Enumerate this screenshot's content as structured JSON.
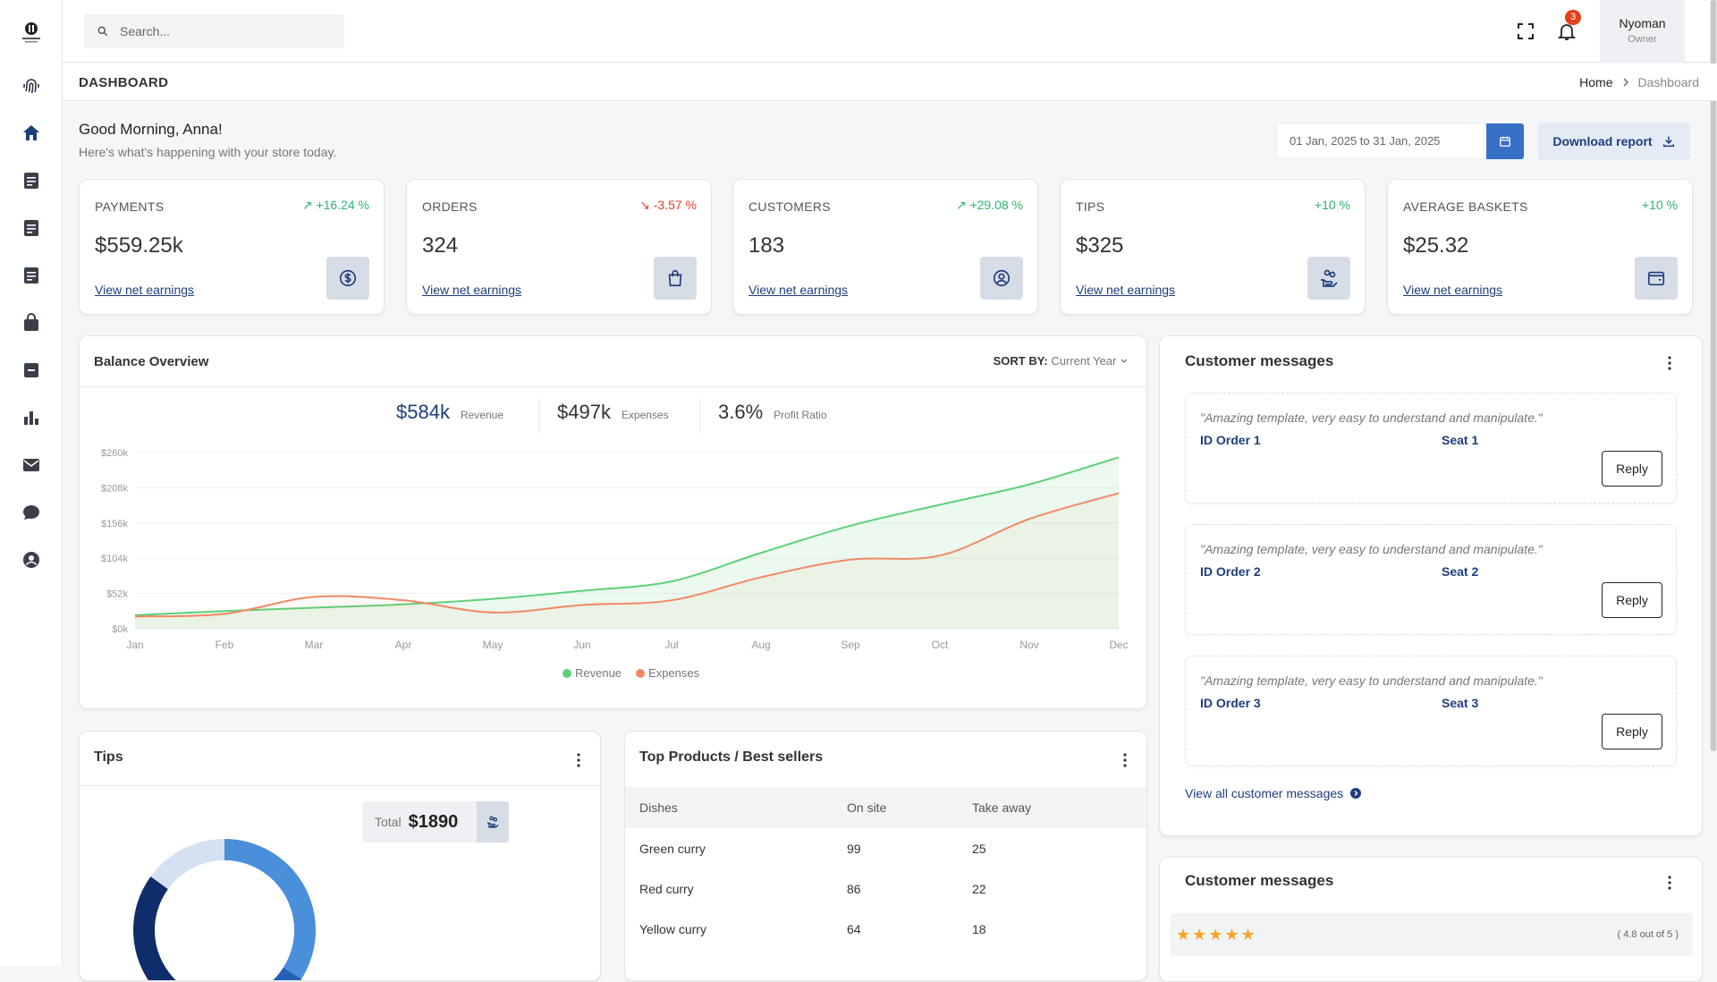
{
  "header": {
    "search_placeholder": "Search...",
    "notification_count": "3",
    "user_name": "Nyoman",
    "user_role": "Owner"
  },
  "titlebar": {
    "title": "DASHBOARD",
    "breadcrumb": [
      "Home",
      "Dashboard"
    ]
  },
  "greeting": {
    "title": "Good Morning, Anna!",
    "subtitle": "Here's what's happening with your store today."
  },
  "controls": {
    "date_range": "01 Jan, 2025 to 31 Jan, 2025",
    "download_label": "Download report"
  },
  "stats": [
    {
      "label": "PAYMENTS",
      "change": "+16.24 %",
      "direction": "up",
      "value": "$559.25k",
      "link": "View net earnings",
      "icon": "dollar-icon"
    },
    {
      "label": "ORDERS",
      "change": "-3.57 %",
      "direction": "down",
      "value": "324",
      "link": "View net earnings",
      "icon": "shopping-bag-icon"
    },
    {
      "label": "CUSTOMERS",
      "change": "+29.08 %",
      "direction": "up",
      "value": "183",
      "link": "View net earnings",
      "icon": "user-circle-icon"
    },
    {
      "label": "TIPS",
      "change": "+10 %",
      "direction": "flat",
      "value": "$325",
      "link": "View net earnings",
      "icon": "hand-coins-icon"
    },
    {
      "label": "AVERAGE BASKETS",
      "change": "+10 %",
      "direction": "flat",
      "value": "$25.32",
      "link": "View net earnings",
      "icon": "wallet-icon"
    }
  ],
  "balance": {
    "title": "Balance Overview",
    "sort_label": "SORT BY:",
    "sort_value": "Current Year",
    "kpis": [
      {
        "value": "$584k",
        "label": "Revenue"
      },
      {
        "value": "$497k",
        "label": "Expenses"
      },
      {
        "value": "3.6%",
        "label": "Profit Ratio"
      }
    ]
  },
  "chart_data": {
    "type": "area",
    "categories": [
      "Jan",
      "Feb",
      "Mar",
      "Apr",
      "May",
      "Jun",
      "Jul",
      "Aug",
      "Sep",
      "Oct",
      "Nov",
      "Dec"
    ],
    "y_ticks": [
      "$0k",
      "$52k",
      "$104k",
      "$156k",
      "$208k",
      "$260k"
    ],
    "ylim": [
      0,
      260
    ],
    "series": [
      {
        "name": "Revenue",
        "color": "#5ed07a",
        "values": [
          20,
          26,
          31,
          36,
          44,
          56,
          70,
          112,
          152,
          183,
          213,
          253
        ]
      },
      {
        "name": "Expenses",
        "color": "#f08a66",
        "values": [
          18,
          22,
          47,
          42,
          24,
          35,
          42,
          76,
          102,
          108,
          162,
          200
        ]
      }
    ],
    "legend_position": "bottom"
  },
  "messages": {
    "title": "Customer messages",
    "items": [
      {
        "quote": "\"Amazing template, very easy to understand and manipulate.\"",
        "order": "ID Order 1",
        "seat": "Seat 1",
        "reply": "Reply"
      },
      {
        "quote": "\"Amazing template, very easy to understand and manipulate.\"",
        "order": "ID Order 2",
        "seat": "Seat 2",
        "reply": "Reply"
      },
      {
        "quote": "\"Amazing template, very easy to understand and manipulate.\"",
        "order": "ID Order 3",
        "seat": "Seat 3",
        "reply": "Reply"
      }
    ],
    "view_all": "View all customer messages"
  },
  "tips": {
    "title": "Tips",
    "total_label": "Total",
    "total_value": "$1890",
    "donut_segments": [
      {
        "fraction": 0.34,
        "color": "#4a8fd9"
      },
      {
        "fraction": 0.08,
        "color": "#2560b8"
      },
      {
        "fraction": 0.43,
        "color": "#0f2d6b"
      },
      {
        "fraction": 0.15,
        "color": "#d5e0f2"
      }
    ]
  },
  "products": {
    "title": "Top Products / Best sellers",
    "columns": [
      "Dishes",
      "On site",
      "Take away"
    ],
    "rows": [
      [
        "Green curry",
        "99",
        "25"
      ],
      [
        "Red curry",
        "86",
        "22"
      ],
      [
        "Yellow curry",
        "64",
        "18"
      ]
    ]
  },
  "reviews": {
    "title": "Customer messages",
    "stars": "★★★★★",
    "rating_text": "( 4.8 out of 5 )"
  }
}
